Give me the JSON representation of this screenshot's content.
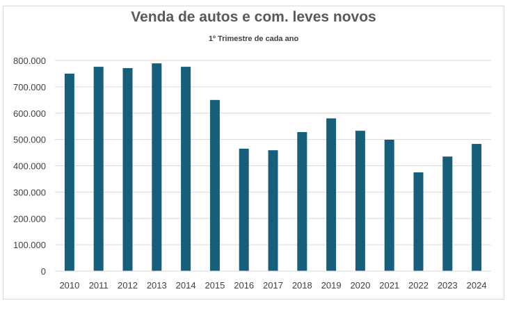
{
  "chart_data": {
    "type": "bar",
    "title": "Venda de autos e com. leves novos",
    "subtitle": "1º Trimestre de cada ano",
    "xlabel": "",
    "ylabel": "",
    "ylim": [
      0,
      800000
    ],
    "yticks": [
      "0",
      "100.000",
      "200.000",
      "300.000",
      "400.000",
      "500.000",
      "600.000",
      "700.000",
      "800.000"
    ],
    "categories": [
      "2010",
      "2011",
      "2012",
      "2013",
      "2014",
      "2015",
      "2016",
      "2017",
      "2018",
      "2019",
      "2020",
      "2021",
      "2022",
      "2023",
      "2024"
    ],
    "values": [
      750000,
      776000,
      771000,
      789000,
      776000,
      650000,
      465000,
      459000,
      528000,
      580000,
      533000,
      499000,
      375000,
      435000,
      483000
    ],
    "grid": true,
    "legend": "none",
    "bar_color": "#175e7a"
  }
}
